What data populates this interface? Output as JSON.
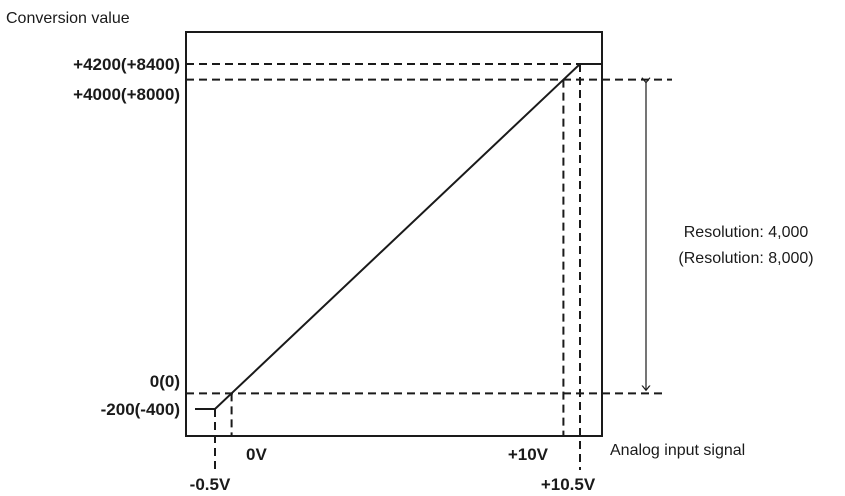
{
  "chart_data": {
    "type": "line",
    "ylabel": "Conversion value",
    "xlabel": "Analog input signal",
    "x_tick_labels": {
      "minus_0_5": "-0.5V",
      "zero": "0V",
      "plus_10": "+10V",
      "plus_10_5": "+10.5V"
    },
    "y_tick_labels": {
      "minus_200": "-200(-400)",
      "zero": "0(0)",
      "plus_4000": "+4000(+8000)",
      "plus_4200": "+4200(+8400)"
    },
    "x_unit": "V",
    "xlim": [
      -0.5,
      10.5
    ],
    "ylim": [
      -200,
      4200
    ],
    "series": [
      {
        "x": [
          -0.5,
          -0.5,
          0,
          10,
          10.5,
          10.5
        ],
        "y": [
          -200,
          -200,
          0,
          4000,
          4200,
          4200
        ]
      }
    ],
    "annotations": {
      "resolution_line1": "Resolution: 4,000",
      "resolution_line2": "(Resolution: 8,000)"
    },
    "grid": false
  }
}
